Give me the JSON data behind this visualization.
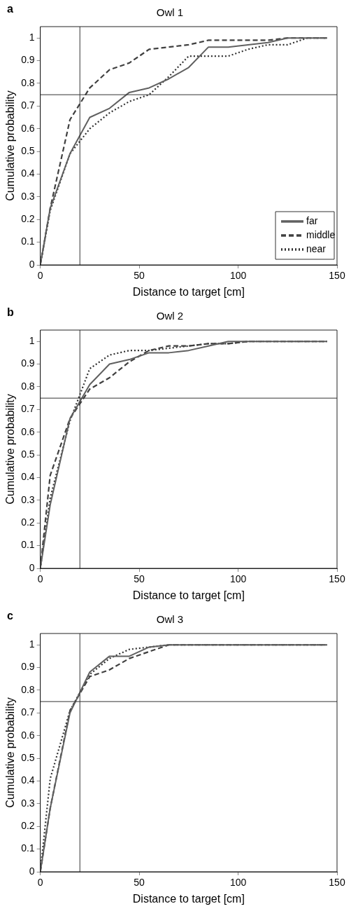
{
  "chart_data": [
    {
      "type": "line",
      "title": "Owl 1",
      "xlabel": "Distance to target [cm]",
      "ylabel": "Cumulative probability",
      "annotations": [
        "a"
      ],
      "x": [
        0,
        5,
        15,
        25,
        35,
        45,
        55,
        65,
        75,
        85,
        95,
        105,
        115,
        125,
        135,
        145
      ],
      "series": [
        {
          "name": "far",
          "color": "#606060",
          "line_style": "solid",
          "values": [
            0,
            0.25,
            0.49,
            0.65,
            0.69,
            0.76,
            0.78,
            0.82,
            0.87,
            0.96,
            0.96,
            0.97,
            0.98,
            1,
            1,
            1
          ]
        },
        {
          "name": "middle",
          "color": "#404040",
          "line_style": "dashed",
          "values": [
            0,
            0.25,
            0.64,
            0.78,
            0.86,
            0.89,
            0.95,
            0.96,
            0.97,
            0.99,
            0.99,
            0.99,
            0.99,
            1,
            1,
            1
          ]
        },
        {
          "name": "near",
          "color": "#303030",
          "line_style": "dotted",
          "values": [
            0,
            0.24,
            0.49,
            0.6,
            0.67,
            0.72,
            0.75,
            0.83,
            0.92,
            0.92,
            0.92,
            0.95,
            0.97,
            0.97,
            1,
            1
          ]
        }
      ],
      "xlim": [
        0,
        150
      ],
      "xticks": [
        0,
        50,
        100,
        150
      ],
      "ylim": [
        0,
        1.05
      ],
      "yticks": [
        0,
        0.1,
        0.2,
        0.3,
        0.4,
        0.5,
        0.6,
        0.7,
        0.8,
        0.9,
        1
      ],
      "ref_lines": [
        {
          "axis": "x",
          "value": 20
        },
        {
          "axis": "y",
          "value": 0.75
        }
      ],
      "legend": "bottom right",
      "marker": "none"
    },
    {
      "type": "line",
      "title": "Owl 2",
      "xlabel": "Distance to target [cm]",
      "ylabel": "Cumulative probability",
      "annotations": [
        "b"
      ],
      "x": [
        0,
        5,
        15,
        25,
        35,
        45,
        55,
        65,
        75,
        85,
        95,
        105,
        115,
        125,
        135,
        145
      ],
      "series": [
        {
          "color": "#606060",
          "line_style": "solid",
          "values": [
            0,
            0.28,
            0.66,
            0.81,
            0.9,
            0.92,
            0.95,
            0.95,
            0.96,
            0.98,
            1,
            1,
            1,
            1,
            1,
            1
          ]
        },
        {
          "color": "#404040",
          "line_style": "dashed",
          "values": [
            0,
            0.41,
            0.66,
            0.79,
            0.84,
            0.91,
            0.96,
            0.98,
            0.98,
            0.99,
            0.99,
            1,
            1,
            1,
            1,
            1
          ]
        },
        {
          "color": "#303030",
          "line_style": "dotted",
          "values": [
            0,
            0.31,
            0.65,
            0.88,
            0.94,
            0.96,
            0.96,
            0.97,
            0.98,
            0.99,
            0.99,
            1,
            1,
            1,
            1,
            1
          ]
        }
      ],
      "xlim": [
        0,
        150
      ],
      "xticks": [
        0,
        50,
        100,
        150
      ],
      "ylim": [
        0,
        1.05
      ],
      "yticks": [
        0,
        0.1,
        0.2,
        0.3,
        0.4,
        0.5,
        0.6,
        0.7,
        0.8,
        0.9,
        1
      ],
      "ref_lines": [
        {
          "axis": "x",
          "value": 20
        },
        {
          "axis": "y",
          "value": 0.75
        }
      ],
      "marker": "none"
    },
    {
      "type": "line",
      "title": "Owl 3",
      "xlabel": "Distance to target [cm]",
      "ylabel": "Cumulative probability",
      "annotations": [
        "c"
      ],
      "x": [
        0,
        5,
        15,
        25,
        35,
        45,
        55,
        65,
        75,
        85,
        95,
        105,
        115,
        125,
        135,
        145
      ],
      "series": [
        {
          "color": "#606060",
          "line_style": "solid",
          "values": [
            0,
            0.28,
            0.7,
            0.88,
            0.95,
            0.95,
            0.99,
            1,
            1,
            1,
            1,
            1,
            1,
            1,
            1,
            1
          ]
        },
        {
          "color": "#404040",
          "line_style": "dashed",
          "values": [
            0,
            0.28,
            0.71,
            0.86,
            0.89,
            0.94,
            0.97,
            1,
            1,
            1,
            1,
            1,
            1,
            1,
            1,
            1
          ]
        },
        {
          "color": "#303030",
          "line_style": "dotted",
          "values": [
            0,
            0.41,
            0.71,
            0.87,
            0.94,
            0.98,
            0.99,
            1,
            1,
            1,
            1,
            1,
            1,
            1,
            1,
            1
          ]
        }
      ],
      "xlim": [
        0,
        150
      ],
      "xticks": [
        0,
        50,
        100,
        150
      ],
      "ylim": [
        0,
        1.05
      ],
      "yticks": [
        0,
        0.1,
        0.2,
        0.3,
        0.4,
        0.5,
        0.6,
        0.7,
        0.8,
        0.9,
        1
      ],
      "ref_lines": [
        {
          "axis": "x",
          "value": 20
        },
        {
          "axis": "y",
          "value": 0.75
        }
      ],
      "marker": "none"
    }
  ]
}
